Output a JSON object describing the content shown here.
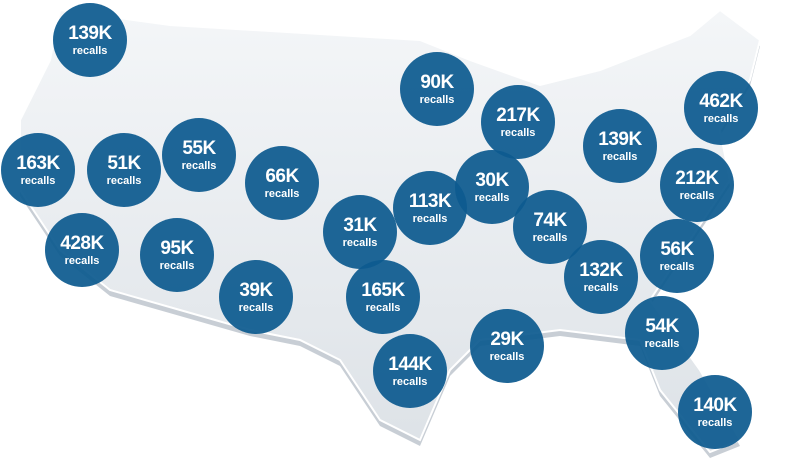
{
  "bubbles": [
    {
      "value": "139K",
      "unit": "recalls"
    },
    {
      "value": "163K",
      "unit": "recalls"
    },
    {
      "value": "51K",
      "unit": "recalls"
    },
    {
      "value": "55K",
      "unit": "recalls"
    },
    {
      "value": "66K",
      "unit": "recalls"
    },
    {
      "value": "428K",
      "unit": "recalls"
    },
    {
      "value": "95K",
      "unit": "recalls"
    },
    {
      "value": "39K",
      "unit": "recalls"
    },
    {
      "value": "31K",
      "unit": "recalls"
    },
    {
      "value": "113K",
      "unit": "recalls"
    },
    {
      "value": "90K",
      "unit": "recalls"
    },
    {
      "value": "217K",
      "unit": "recalls"
    },
    {
      "value": "30K",
      "unit": "recalls"
    },
    {
      "value": "165K",
      "unit": "recalls"
    },
    {
      "value": "144K",
      "unit": "recalls"
    },
    {
      "value": "29K",
      "unit": "recalls"
    },
    {
      "value": "74K",
      "unit": "recalls"
    },
    {
      "value": "132K",
      "unit": "recalls"
    },
    {
      "value": "139K",
      "unit": "recalls"
    },
    {
      "value": "462K",
      "unit": "recalls"
    },
    {
      "value": "212K",
      "unit": "recalls"
    },
    {
      "value": "56K",
      "unit": "recalls"
    },
    {
      "value": "54K",
      "unit": "recalls"
    },
    {
      "value": "140K",
      "unit": "recalls"
    }
  ]
}
